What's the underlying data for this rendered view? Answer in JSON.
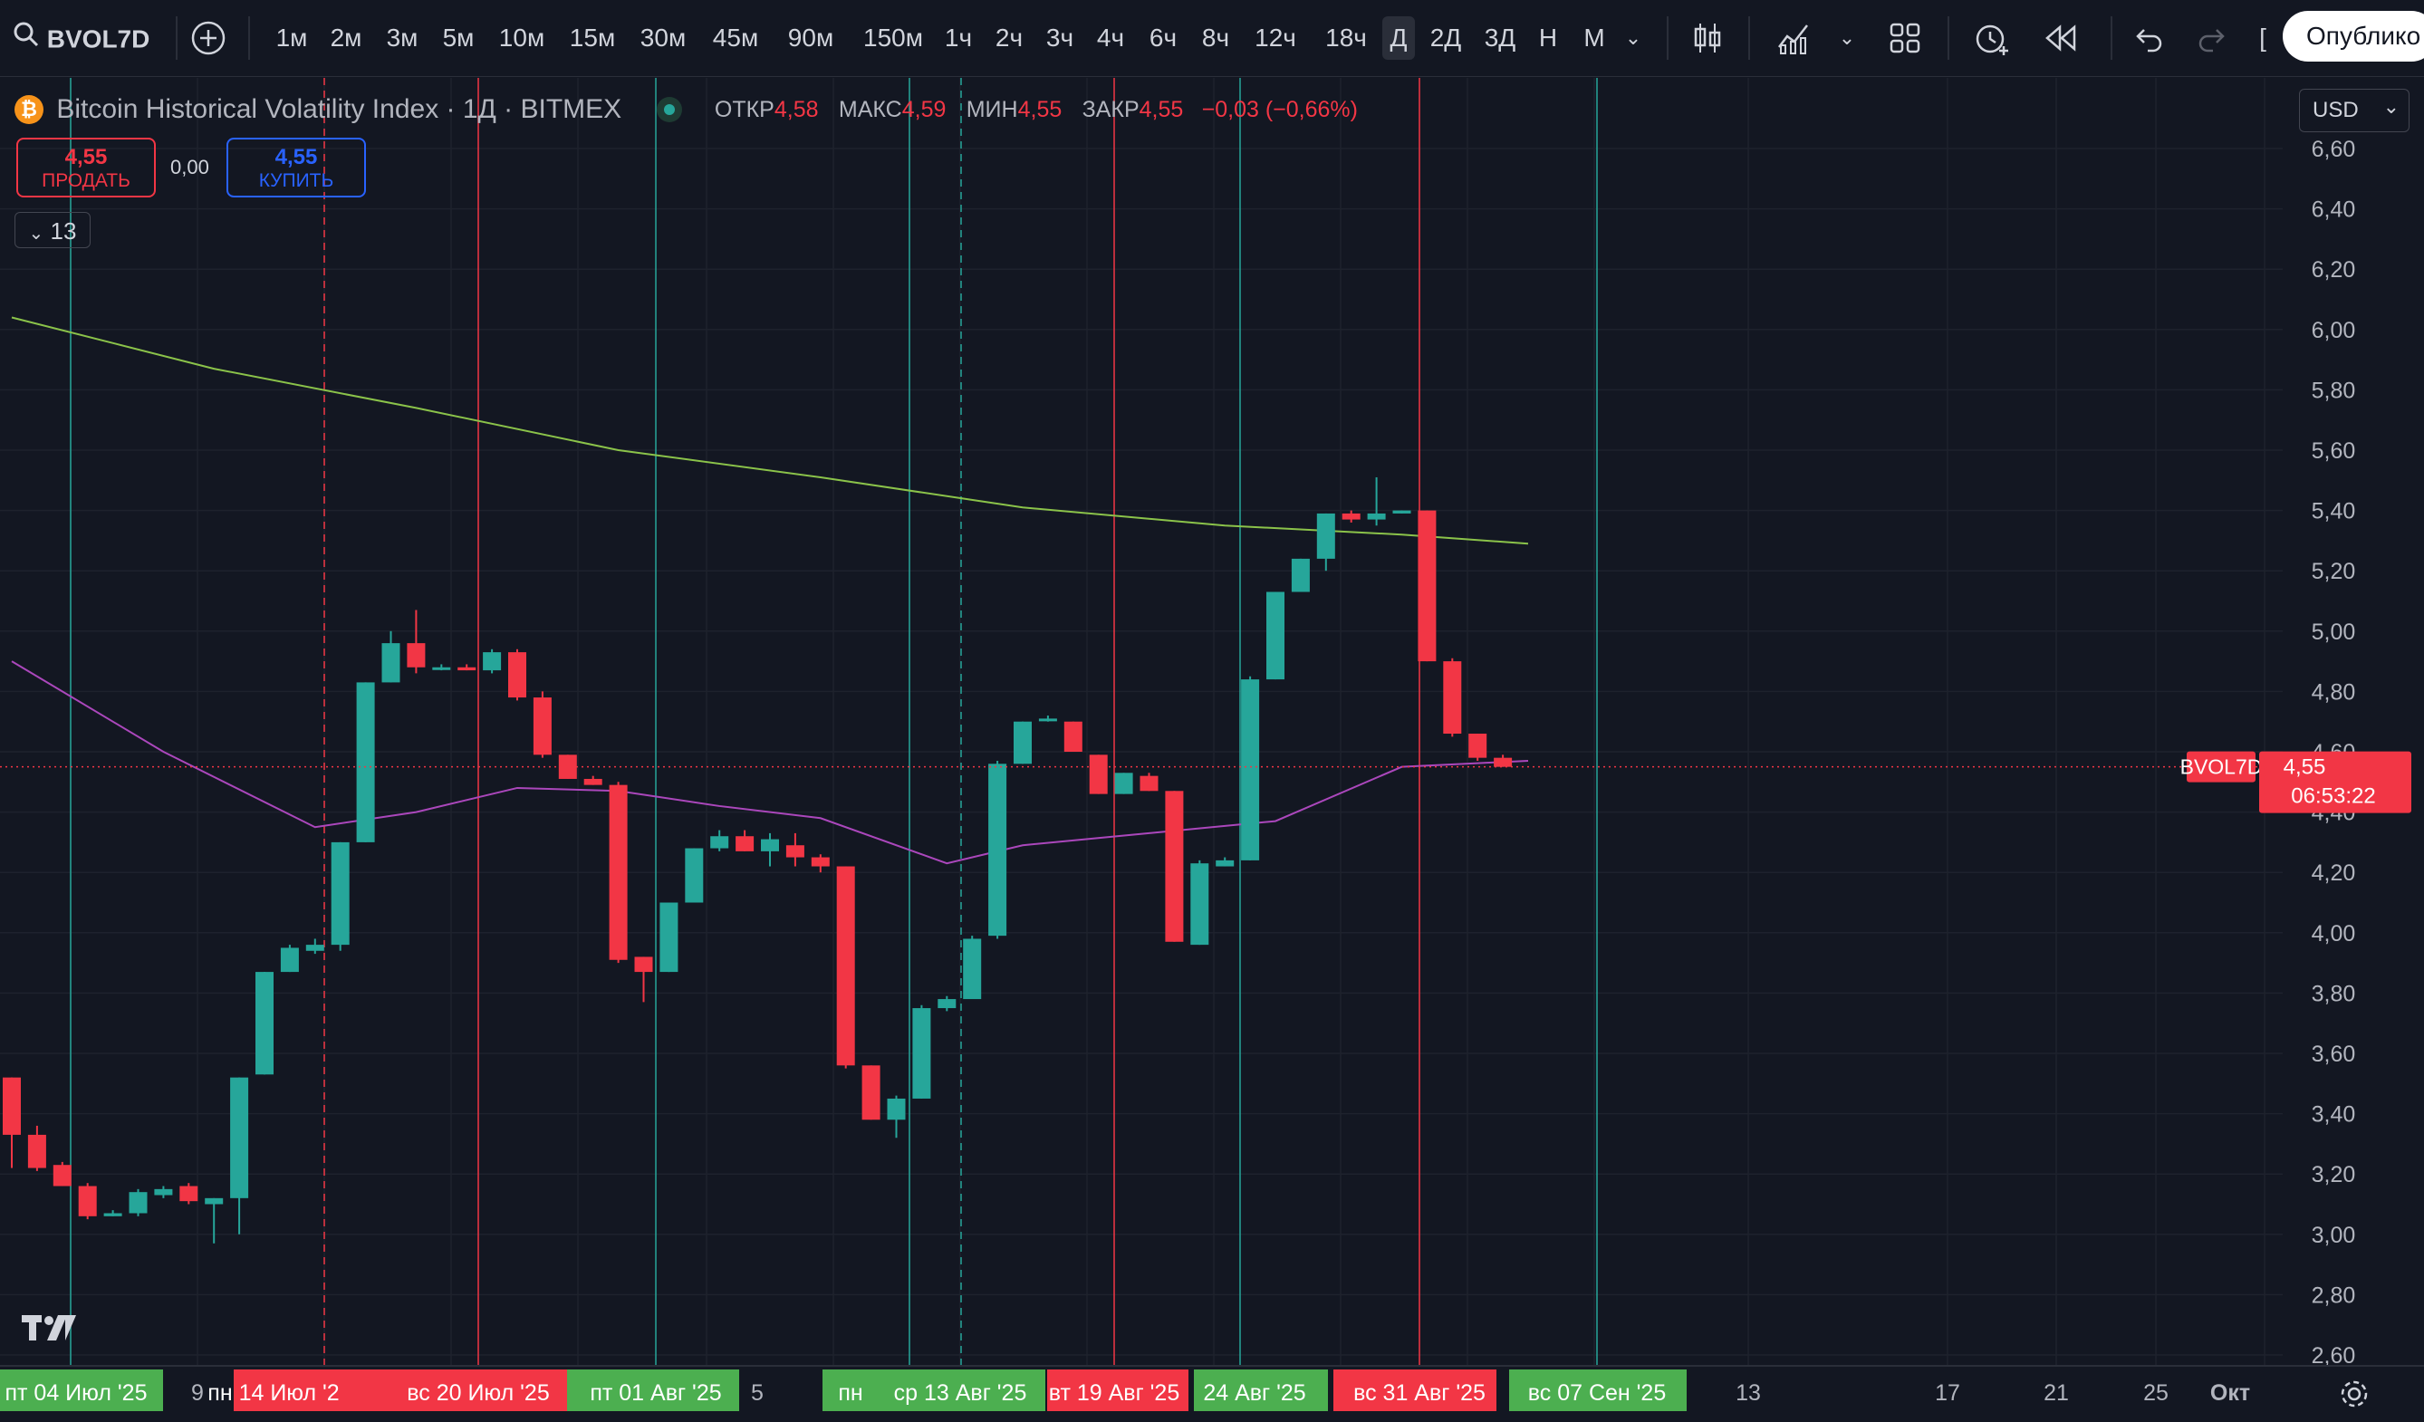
{
  "toolbar": {
    "symbol": "BVOL7D",
    "timeframes": [
      "1м",
      "2м",
      "3м",
      "5м",
      "10м",
      "15м",
      "30м",
      "45м",
      "90м",
      "150м",
      "1ч",
      "2ч",
      "3ч",
      "4ч",
      "6ч",
      "8ч",
      "12ч",
      "18ч",
      "Д",
      "2Д",
      "3Д",
      "Н",
      "М"
    ],
    "active_timeframe": "Д",
    "publish_label": "Опублико"
  },
  "legend": {
    "title": "Bitcoin Historical Volatility Index · 1Д · BITMEX",
    "open_label": "ОТКР",
    "open": "4,58",
    "high_label": "МАКС",
    "high": "4,59",
    "low_label": "МИН",
    "low": "4,55",
    "close_label": "ЗАКР",
    "close": "4,55",
    "change": "−0,03 (−0,66%)"
  },
  "trade": {
    "sell_price": "4,55",
    "sell_label": "ПРОДАТЬ",
    "spread": "0,00",
    "buy_price": "4,55",
    "buy_label": "КУПИТЬ"
  },
  "indicators_count": "13",
  "currency": "USD",
  "price_axis": {
    "ticks": [
      "6,60",
      "6,40",
      "6,20",
      "6,00",
      "5,80",
      "5,60",
      "5,40",
      "5,20",
      "5,00",
      "4,80",
      "4,60",
      "4,40",
      "4,20",
      "4,00",
      "3,80",
      "3,60",
      "3,40",
      "3,20",
      "3,00",
      "2,80",
      "2,60"
    ],
    "last_symbol": "BVOL7D",
    "last_price": "4,55",
    "countdown": "06:53:22"
  },
  "time_axis": {
    "labels": [
      {
        "text": "пт 04 Июл '25",
        "hl": "green"
      },
      {
        "text": "9",
        "hl": ""
      },
      {
        "text": "пн 14 Июл '2",
        "hl": "red"
      },
      {
        "text": "вс 20 Июл '25",
        "hl": "red"
      },
      {
        "text": "пт 01 Авг '25",
        "hl": "green"
      },
      {
        "text": "5",
        "hl": ""
      },
      {
        "text": "пн",
        "hl": "green"
      },
      {
        "text": "ср 13 Авг '25",
        "hl": "green"
      },
      {
        "text": "вт 19 Авг '25",
        "hl": "red"
      },
      {
        "text": "24 Авг '25",
        "hl": "green"
      },
      {
        "text": "вс 31 Авг '25",
        "hl": "red"
      },
      {
        "text": "вс 07 Сен '25",
        "hl": "green"
      },
      {
        "text": "13",
        "hl": ""
      },
      {
        "text": "17",
        "hl": ""
      },
      {
        "text": "21",
        "hl": ""
      },
      {
        "text": "25",
        "hl": ""
      },
      {
        "text": "Окт",
        "hl": ""
      }
    ]
  },
  "colors": {
    "up": "#26a69a",
    "down": "#f23645",
    "ma_long": "#8bc34a",
    "ma_short": "#ab47bc",
    "bg": "#131722",
    "grid": "#1e222d"
  },
  "chart_data": {
    "type": "candlestick",
    "ylim": [
      2.6,
      6.6
    ],
    "candles": [
      {
        "o": 3.52,
        "h": 3.52,
        "l": 3.22,
        "c": 3.33
      },
      {
        "o": 3.33,
        "h": 3.36,
        "l": 3.21,
        "c": 3.22
      },
      {
        "o": 3.23,
        "h": 3.24,
        "l": 3.16,
        "c": 3.16
      },
      {
        "o": 3.16,
        "h": 3.17,
        "l": 3.05,
        "c": 3.06
      },
      {
        "o": 3.06,
        "h": 3.08,
        "l": 3.06,
        "c": 3.07
      },
      {
        "o": 3.07,
        "h": 3.15,
        "l": 3.06,
        "c": 3.14
      },
      {
        "o": 3.13,
        "h": 3.16,
        "l": 3.12,
        "c": 3.15
      },
      {
        "o": 3.16,
        "h": 3.17,
        "l": 3.1,
        "c": 3.11
      },
      {
        "o": 3.1,
        "h": 3.12,
        "l": 2.97,
        "c": 3.12
      },
      {
        "o": 3.12,
        "h": 3.52,
        "l": 3.0,
        "c": 3.52
      },
      {
        "o": 3.53,
        "h": 3.87,
        "l": 3.53,
        "c": 3.87
      },
      {
        "o": 3.87,
        "h": 3.96,
        "l": 3.87,
        "c": 3.95
      },
      {
        "o": 3.94,
        "h": 3.98,
        "l": 3.93,
        "c": 3.96
      },
      {
        "o": 3.96,
        "h": 4.3,
        "l": 3.94,
        "c": 4.3
      },
      {
        "o": 4.3,
        "h": 4.83,
        "l": 4.3,
        "c": 4.83
      },
      {
        "o": 4.83,
        "h": 5.0,
        "l": 4.83,
        "c": 4.96
      },
      {
        "o": 4.96,
        "h": 5.07,
        "l": 4.86,
        "c": 4.88
      },
      {
        "o": 4.88,
        "h": 4.89,
        "l": 4.87,
        "c": 4.88
      },
      {
        "o": 4.88,
        "h": 4.89,
        "l": 4.87,
        "c": 4.87
      },
      {
        "o": 4.87,
        "h": 4.94,
        "l": 4.86,
        "c": 4.93
      },
      {
        "o": 4.93,
        "h": 4.94,
        "l": 4.77,
        "c": 4.78
      },
      {
        "o": 4.78,
        "h": 4.8,
        "l": 4.58,
        "c": 4.59
      },
      {
        "o": 4.59,
        "h": 4.59,
        "l": 4.51,
        "c": 4.51
      },
      {
        "o": 4.51,
        "h": 4.52,
        "l": 4.49,
        "c": 4.49
      },
      {
        "o": 4.49,
        "h": 4.5,
        "l": 3.9,
        "c": 3.91
      },
      {
        "o": 3.92,
        "h": 3.92,
        "l": 3.77,
        "c": 3.87
      },
      {
        "o": 3.87,
        "h": 4.1,
        "l": 3.87,
        "c": 4.1
      },
      {
        "o": 4.1,
        "h": 4.28,
        "l": 4.1,
        "c": 4.28
      },
      {
        "o": 4.28,
        "h": 4.34,
        "l": 4.27,
        "c": 4.32
      },
      {
        "o": 4.32,
        "h": 4.34,
        "l": 4.27,
        "c": 4.27
      },
      {
        "o": 4.27,
        "h": 4.33,
        "l": 4.22,
        "c": 4.31
      },
      {
        "o": 4.29,
        "h": 4.33,
        "l": 4.22,
        "c": 4.25
      },
      {
        "o": 4.25,
        "h": 4.26,
        "l": 4.2,
        "c": 4.22
      },
      {
        "o": 4.22,
        "h": 4.22,
        "l": 3.55,
        "c": 3.56
      },
      {
        "o": 3.56,
        "h": 3.56,
        "l": 3.38,
        "c": 3.38
      },
      {
        "o": 3.38,
        "h": 3.46,
        "l": 3.32,
        "c": 3.45
      },
      {
        "o": 3.45,
        "h": 3.76,
        "l": 3.45,
        "c": 3.75
      },
      {
        "o": 3.75,
        "h": 3.79,
        "l": 3.74,
        "c": 3.78
      },
      {
        "o": 3.78,
        "h": 3.99,
        "l": 3.78,
        "c": 3.98
      },
      {
        "o": 3.99,
        "h": 4.57,
        "l": 3.98,
        "c": 4.56
      },
      {
        "o": 4.56,
        "h": 4.7,
        "l": 4.56,
        "c": 4.7
      },
      {
        "o": 4.71,
        "h": 4.72,
        "l": 4.7,
        "c": 4.71
      },
      {
        "o": 4.7,
        "h": 4.7,
        "l": 4.6,
        "c": 4.6
      },
      {
        "o": 4.59,
        "h": 4.59,
        "l": 4.46,
        "c": 4.46
      },
      {
        "o": 4.46,
        "h": 4.53,
        "l": 4.46,
        "c": 4.53
      },
      {
        "o": 4.52,
        "h": 4.53,
        "l": 4.47,
        "c": 4.47
      },
      {
        "o": 4.47,
        "h": 4.47,
        "l": 3.97,
        "c": 3.97
      },
      {
        "o": 3.96,
        "h": 4.24,
        "l": 3.96,
        "c": 4.23
      },
      {
        "o": 4.22,
        "h": 4.25,
        "l": 4.22,
        "c": 4.24
      },
      {
        "o": 4.24,
        "h": 4.85,
        "l": 4.24,
        "c": 4.84
      },
      {
        "o": 4.84,
        "h": 5.13,
        "l": 4.84,
        "c": 5.13
      },
      {
        "o": 5.13,
        "h": 5.24,
        "l": 5.13,
        "c": 5.24
      },
      {
        "o": 5.24,
        "h": 5.39,
        "l": 5.2,
        "c": 5.39
      },
      {
        "o": 5.39,
        "h": 5.4,
        "l": 5.36,
        "c": 5.37
      },
      {
        "o": 5.37,
        "h": 5.51,
        "l": 5.35,
        "c": 5.39
      },
      {
        "o": 5.39,
        "h": 5.4,
        "l": 5.39,
        "c": 5.4
      },
      {
        "o": 5.4,
        "h": 5.4,
        "l": 4.9,
        "c": 4.9
      },
      {
        "o": 4.9,
        "h": 4.91,
        "l": 4.65,
        "c": 4.66
      },
      {
        "o": 4.66,
        "h": 4.66,
        "l": 4.57,
        "c": 4.58
      },
      {
        "o": 4.58,
        "h": 4.59,
        "l": 4.55,
        "c": 4.55
      }
    ],
    "ma_long": [
      [
        0,
        6.04
      ],
      [
        8,
        5.87
      ],
      [
        16,
        5.74
      ],
      [
        24,
        5.6
      ],
      [
        32,
        5.51
      ],
      [
        40,
        5.41
      ],
      [
        48,
        5.35
      ],
      [
        55,
        5.32
      ],
      [
        60,
        5.29
      ]
    ],
    "ma_short": [
      [
        0,
        4.9
      ],
      [
        6,
        4.6
      ],
      [
        12,
        4.35
      ],
      [
        16,
        4.4
      ],
      [
        20,
        4.48
      ],
      [
        24,
        4.47
      ],
      [
        28,
        4.42
      ],
      [
        32,
        4.38
      ],
      [
        37,
        4.23
      ],
      [
        40,
        4.29
      ],
      [
        45,
        4.33
      ],
      [
        50,
        4.37
      ],
      [
        55,
        4.55
      ],
      [
        60,
        4.57
      ]
    ]
  }
}
